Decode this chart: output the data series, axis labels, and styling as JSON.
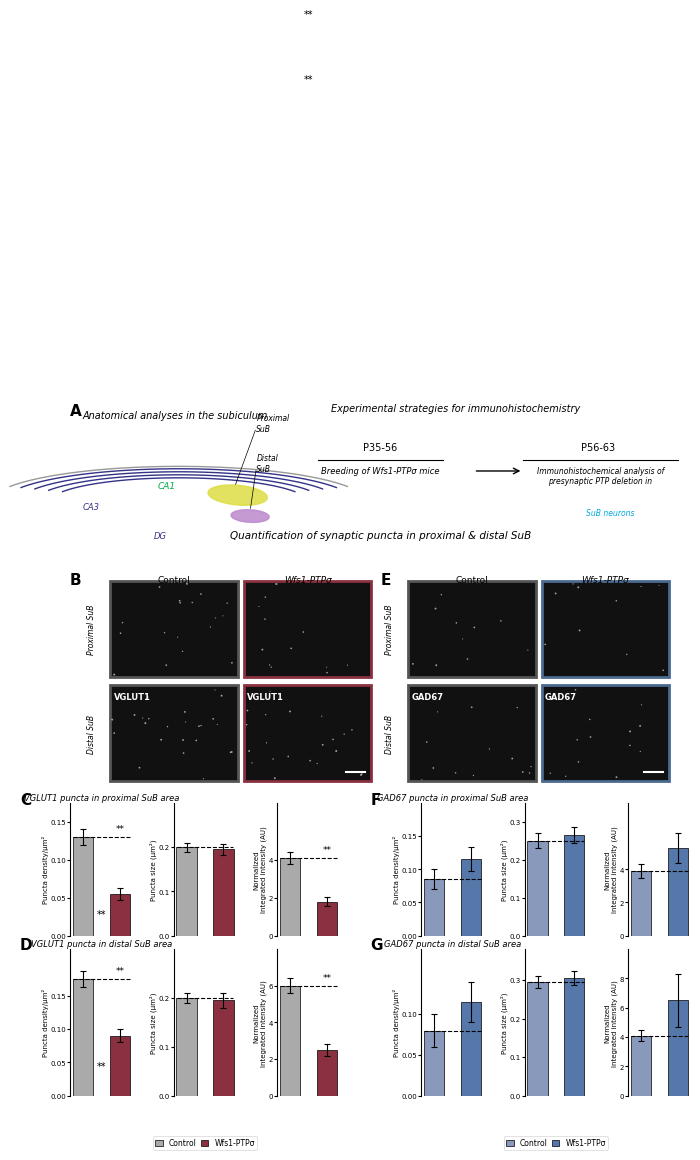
{
  "panel_A_text": {
    "title_left": "Anatomical analyses in the subiculum",
    "title_right": "Experimental strategies for immunohistochemistry",
    "p1": "P35-56",
    "p2": "P56-63",
    "text1": "Breeding of Wfs1-PTPσ mice",
    "arrow": "→",
    "text2": "Immunohistochemical analysis of\npresynaptic PTP deletion in",
    "text2_colored": "SuB neurons",
    "labels": [
      "CA1",
      "CA3",
      "DG",
      "Proximal\nSuB",
      "Distal\nSuB"
    ]
  },
  "panel_B_title": "Quantification of synaptic puncta in proximal & distal SuB",
  "control_color": "#808080",
  "wfs1_color": "#8B3A3A",
  "gad_control_color": "#7090B0",
  "gad_wfs1_color": "#4A6A90",
  "panel_C_title": "VGLUT1 puncta in proximal SuB area",
  "panel_D_title": "VGLUT1 puncta in distal SuB area",
  "panel_F_title": "GAD67 puncta in proximal SuB area",
  "panel_G_title": "GAD67 puncta in distal SuB area",
  "C_density": {
    "ctrl": 0.13,
    "wfs1": 0.055,
    "ctrl_err": 0.01,
    "wfs1_err": 0.008
  },
  "C_size": {
    "ctrl": 0.2,
    "wfs1": 0.195,
    "ctrl_err": 0.01,
    "wfs1_err": 0.012
  },
  "C_intensity": {
    "ctrl": 4.1,
    "wfs1": 1.8,
    "ctrl_err": 0.3,
    "wfs1_err": 0.25
  },
  "D_density": {
    "ctrl": 0.175,
    "wfs1": 0.09,
    "ctrl_err": 0.012,
    "wfs1_err": 0.01
  },
  "D_size": {
    "ctrl": 0.2,
    "wfs1": 0.195,
    "ctrl_err": 0.01,
    "wfs1_err": 0.015
  },
  "D_intensity": {
    "ctrl": 6.0,
    "wfs1": 2.5,
    "ctrl_err": 0.4,
    "wfs1_err": 0.35
  },
  "F_density": {
    "ctrl": 0.085,
    "wfs1": 0.115,
    "ctrl_err": 0.015,
    "wfs1_err": 0.018
  },
  "F_size": {
    "ctrl": 0.25,
    "wfs1": 0.265,
    "ctrl_err": 0.02,
    "wfs1_err": 0.02
  },
  "F_intensity": {
    "ctrl": 3.9,
    "wfs1": 5.3,
    "ctrl_err": 0.4,
    "wfs1_err": 0.9
  },
  "G_density": {
    "ctrl": 0.08,
    "wfs1": 0.115,
    "ctrl_err": 0.02,
    "wfs1_err": 0.025
  },
  "G_size": {
    "ctrl": 0.295,
    "wfs1": 0.305,
    "ctrl_err": 0.015,
    "wfs1_err": 0.018
  },
  "G_intensity": {
    "ctrl": 4.1,
    "wfs1": 6.5,
    "ctrl_err": 0.35,
    "wfs1_err": 1.8
  },
  "legend_ctrl": "Control",
  "legend_wfs1": "Wfs1-PTPσ",
  "ctrl_gray": "#AAAAAA",
  "wfs1_dark_red": "#8B3040",
  "ctrl_blue_gray": "#8899AA",
  "wfs1_blue": "#5577AA"
}
